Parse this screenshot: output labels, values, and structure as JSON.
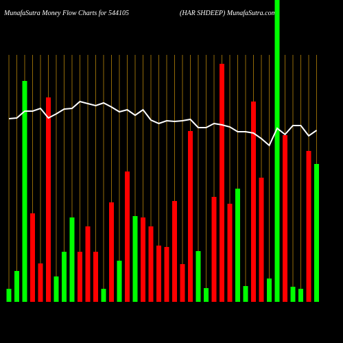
{
  "chart_data": {
    "type": "bar",
    "title_left": "MunafaSutra  Money Flow  Charts for 544105",
    "title_right": "(HAR                SHDEEP) MunafaSutra.com",
    "ylim": [
      0,
      440
    ],
    "bar_colors": [
      "#00ff00",
      "#00ff00",
      "#00ff00",
      "#ff0000",
      "#ff0000",
      "#ff0000",
      "#00ff00",
      "#00ff00",
      "#00ff00",
      "#ff0000",
      "#ff0000",
      "#ff0000",
      "#00ff00",
      "#ff0000",
      "#00ff00",
      "#ff0000",
      "#00ff00",
      "#ff0000",
      "#ff0000",
      "#ff0000",
      "#ff0000",
      "#ff0000",
      "#ff0000",
      "#ff0000",
      "#00ff00",
      "#00ff00",
      "#ff0000",
      "#ff0000",
      "#ff0000",
      "#00ff00",
      "#00ff00",
      "#ff0000",
      "#ff0000",
      "#00ff00",
      "#00ff00",
      "#ff0000",
      "#00ff00",
      "#00ff00",
      "#ff0000",
      "#00ff00"
    ],
    "values": [
      19,
      45,
      322,
      129,
      56,
      298,
      37,
      73,
      123,
      73,
      110,
      73,
      19,
      145,
      60,
      190,
      125,
      123,
      110,
      82,
      80,
      147,
      55,
      249,
      74,
      20,
      153,
      347,
      143,
      165,
      23,
      292,
      181,
      34,
      440,
      243,
      22,
      19,
      220,
      201
    ],
    "line_color": "#ffffff",
    "line_values": [
      267,
      268,
      278,
      278,
      282,
      268,
      274,
      281,
      282,
      292,
      289,
      286,
      290,
      284,
      277,
      280,
      272,
      280,
      265,
      260,
      264,
      263,
      264,
      266,
      254,
      254,
      260,
      258,
      255,
      248,
      248,
      246,
      238,
      228,
      253,
      244,
      257,
      257,
      242,
      250
    ],
    "divider_color": "#b8860b"
  }
}
